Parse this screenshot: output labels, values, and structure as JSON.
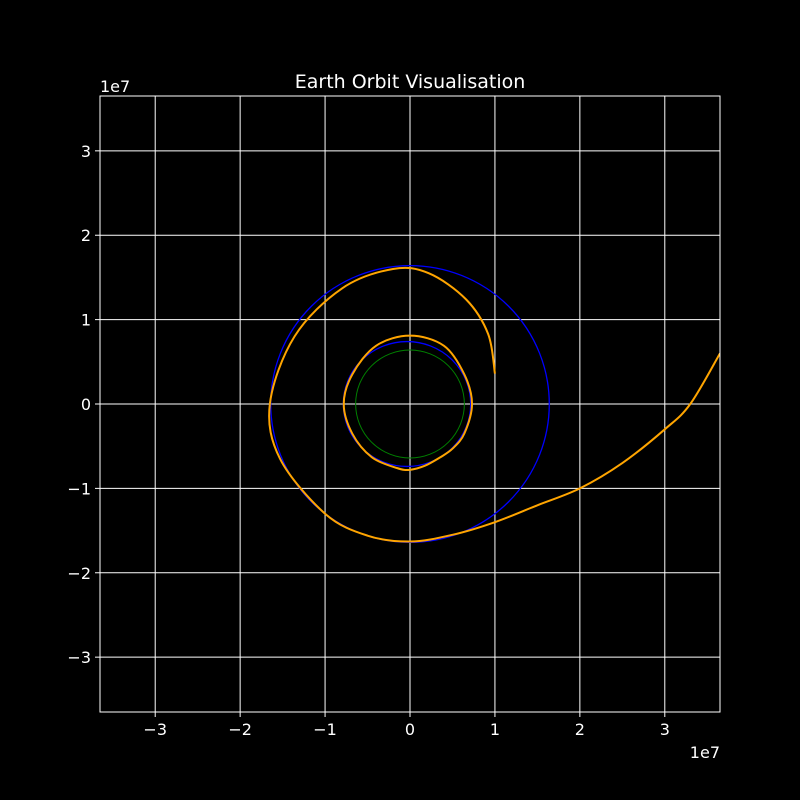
{
  "chart_data": {
    "type": "line",
    "title": "Earth Orbit Visualisation",
    "xlabel": "",
    "ylabel": "",
    "x_offset_label": "1e7",
    "y_offset_label": "1e7",
    "xlim": [
      -36500000.0,
      36500000.0
    ],
    "ylim": [
      -36500000.0,
      36500000.0
    ],
    "x_ticks": [
      -30000000.0,
      -20000000.0,
      -10000000.0,
      0,
      10000000.0,
      20000000.0,
      30000000.0
    ],
    "y_ticks": [
      -30000000.0,
      -20000000.0,
      -10000000.0,
      0,
      10000000.0,
      20000000.0,
      30000000.0
    ],
    "x_tick_labels": [
      "−3",
      "−2",
      "−1",
      "0",
      "1",
      "2",
      "3"
    ],
    "y_tick_labels": [
      "−3",
      "−2",
      "−1",
      "0",
      "1",
      "2",
      "3"
    ],
    "grid": true,
    "background": "#000000",
    "foreground": "#ffffff",
    "series": [
      {
        "kind": "circle",
        "color": "#008000",
        "center": [
          0,
          0
        ],
        "radius": 6400000.0
      },
      {
        "kind": "ellipse",
        "color": "#0000ff",
        "center": [
          -350000.0,
          0
        ],
        "rx": 7500000.0,
        "ry": 7400000.0
      },
      {
        "kind": "ellipse",
        "color": "#0000ff",
        "center": [
          0,
          0
        ],
        "rx": 16400000.0,
        "ry": 16400000.0
      },
      {
        "kind": "polyline",
        "color": "#ffa500",
        "points": [
          [
            3600000.0,
            -6300000.0
          ],
          [
            5000000.0,
            -5300000.0
          ],
          [
            6400000.0,
            -3500000.0
          ],
          [
            7300000.0,
            0
          ],
          [
            6400000.0,
            3500000.0
          ],
          [
            4000000.0,
            6900000.0
          ],
          [
            0,
            8100000.0
          ],
          [
            -4000000.0,
            6900000.0
          ],
          [
            -6800000.0,
            3500000.0
          ],
          [
            -7800000.0,
            0
          ],
          [
            -6800000.0,
            -3500000.0
          ],
          [
            -4500000.0,
            -6300000.0
          ],
          [
            -1500000.0,
            -7600000.0
          ],
          [
            0,
            -7800000.0
          ],
          [
            1800000.0,
            -7300000.0
          ],
          [
            3600000.0,
            -6300000.0
          ]
        ]
      },
      {
        "kind": "polyline",
        "color": "#ffa500",
        "points": [
          [
            10000000.0,
            3600000.0
          ],
          [
            9200000.0,
            8300000.0
          ],
          [
            6600000.0,
            12400000.0
          ],
          [
            2200000.0,
            15500000.0
          ],
          [
            -2000000.0,
            16000000.0
          ],
          [
            -8000000.0,
            13700000.0
          ],
          [
            -13600000.0,
            8000000.0
          ],
          [
            -16500000.0,
            0
          ],
          [
            -15300000.0,
            -6500000.0
          ],
          [
            -10000000.0,
            -13000000.0
          ],
          [
            -5000000.0,
            -15600000.0
          ],
          [
            0,
            -16300000.0
          ],
          [
            5000000.0,
            -15500000.0
          ],
          [
            10000000.0,
            -14000000.0
          ],
          [
            15000000.0,
            -12000000.0
          ],
          [
            20000000.0,
            -10000000.0
          ],
          [
            25000000.0,
            -7000000.0
          ],
          [
            30000000.0,
            -3000000.0
          ],
          [
            33000000.0,
            0
          ],
          [
            36500000.0,
            6000000.0
          ]
        ]
      }
    ]
  }
}
